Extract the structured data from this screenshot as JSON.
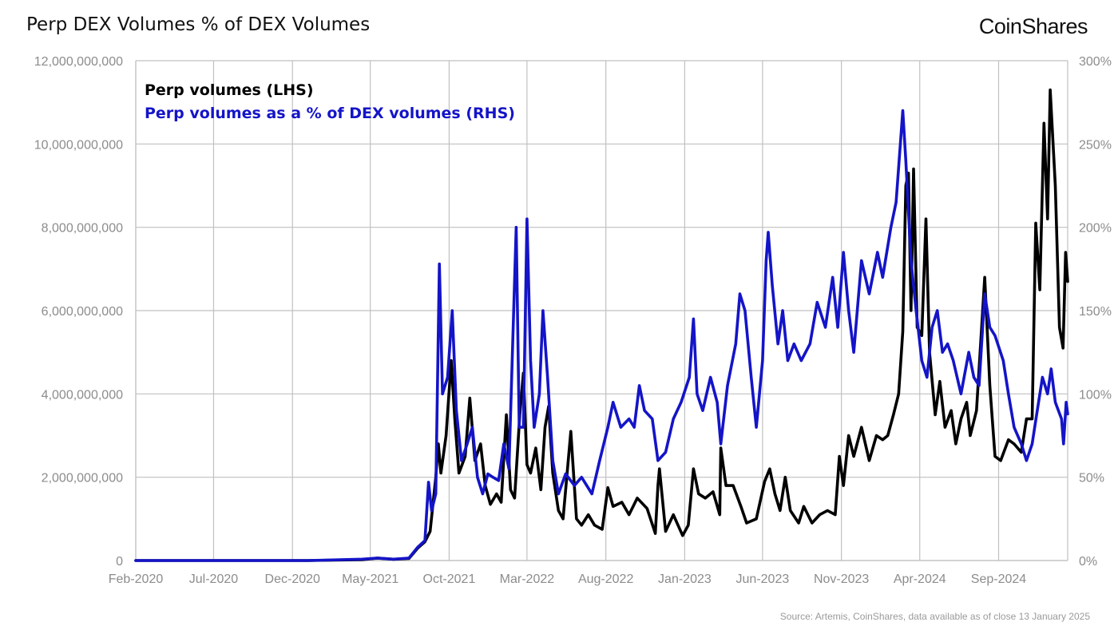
{
  "header": {
    "title": "Perp DEX Volumes % of DEX Volumes",
    "logo": "CoinShares"
  },
  "footer": {
    "source": "Source: Artemis, CoinShares, data available as of close 13 January 2025"
  },
  "colors": {
    "perp_volumes": "#000000",
    "perp_share": "#1414c8",
    "grid": "#c0c0c0",
    "tick_text": "#8c8c8c"
  },
  "chart_data": {
    "type": "line",
    "grid": true,
    "legend_placement": "top-left",
    "x_start": "2020-02-01",
    "x_end": "2025-01-13",
    "x_tick_labels": [
      "Feb-2020",
      "Jul-2020",
      "Dec-2020",
      "May-2021",
      "Oct-2021",
      "Mar-2022",
      "Aug-2022",
      "Jan-2023",
      "Jun-2023",
      "Nov-2023",
      "Apr-2024",
      "Sep-2024"
    ],
    "x_tick_dates": [
      "2020-02-01",
      "2020-07-01",
      "2020-12-01",
      "2021-05-01",
      "2021-10-01",
      "2022-03-01",
      "2022-08-01",
      "2023-01-01",
      "2023-06-01",
      "2023-11-01",
      "2024-04-01",
      "2024-09-01"
    ],
    "y_left": {
      "min": 0,
      "max": 12000000000,
      "ticks": [
        0,
        2000000000,
        4000000000,
        6000000000,
        8000000000,
        10000000000,
        12000000000
      ],
      "tick_labels": [
        "0",
        "2,000,000,000",
        "4,000,000,000",
        "6,000,000,000",
        "8,000,000,000",
        "10,000,000,000",
        "12,000,000,000"
      ]
    },
    "y_right": {
      "min": 0,
      "max": 300,
      "ticks": [
        0,
        50,
        100,
        150,
        200,
        250,
        300
      ],
      "tick_labels": [
        "0%",
        "50%",
        "100%",
        "150%",
        "200%",
        "250%",
        "300%"
      ]
    },
    "series": [
      {
        "name": "Perp volumes (LHS)",
        "axis": "left",
        "color": "#000000",
        "points": [
          [
            "2020-02-01",
            0
          ],
          [
            "2020-08-01",
            0
          ],
          [
            "2021-01-01",
            0
          ],
          [
            "2021-04-15",
            20000000
          ],
          [
            "2021-05-15",
            60000000
          ],
          [
            "2021-06-15",
            30000000
          ],
          [
            "2021-07-15",
            50000000
          ],
          [
            "2021-08-01",
            300000000
          ],
          [
            "2021-08-15",
            450000000
          ],
          [
            "2021-08-25",
            700000000
          ],
          [
            "2021-09-05",
            2000000000
          ],
          [
            "2021-09-10",
            2800000000
          ],
          [
            "2021-09-15",
            2100000000
          ],
          [
            "2021-09-25",
            3000000000
          ],
          [
            "2021-10-05",
            4800000000
          ],
          [
            "2021-10-12",
            3400000000
          ],
          [
            "2021-10-20",
            2100000000
          ],
          [
            "2021-11-01",
            2500000000
          ],
          [
            "2021-11-10",
            3900000000
          ],
          [
            "2021-11-20",
            2400000000
          ],
          [
            "2021-12-01",
            2800000000
          ],
          [
            "2021-12-10",
            1800000000
          ],
          [
            "2021-12-20",
            1350000000
          ],
          [
            "2022-01-01",
            1600000000
          ],
          [
            "2022-01-10",
            1400000000
          ],
          [
            "2022-01-20",
            3500000000
          ],
          [
            "2022-01-28",
            1700000000
          ],
          [
            "2022-02-05",
            1500000000
          ],
          [
            "2022-02-15",
            3500000000
          ],
          [
            "2022-02-22",
            4500000000
          ],
          [
            "2022-03-01",
            2300000000
          ],
          [
            "2022-03-08",
            2100000000
          ],
          [
            "2022-03-18",
            2700000000
          ],
          [
            "2022-03-28",
            1700000000
          ],
          [
            "2022-04-05",
            3200000000
          ],
          [
            "2022-04-12",
            3700000000
          ],
          [
            "2022-04-20",
            2100000000
          ],
          [
            "2022-05-01",
            1200000000
          ],
          [
            "2022-05-10",
            1000000000
          ],
          [
            "2022-05-25",
            3100000000
          ],
          [
            "2022-06-05",
            1000000000
          ],
          [
            "2022-06-15",
            850000000
          ],
          [
            "2022-06-28",
            1100000000
          ],
          [
            "2022-07-10",
            850000000
          ],
          [
            "2022-07-25",
            750000000
          ],
          [
            "2022-08-05",
            1750000000
          ],
          [
            "2022-08-15",
            1300000000
          ],
          [
            "2022-09-01",
            1400000000
          ],
          [
            "2022-09-15",
            1100000000
          ],
          [
            "2022-10-01",
            1500000000
          ],
          [
            "2022-10-20",
            1250000000
          ],
          [
            "2022-11-05",
            650000000
          ],
          [
            "2022-11-10",
            1800000000
          ],
          [
            "2022-11-13",
            2200000000
          ],
          [
            "2022-11-25",
            700000000
          ],
          [
            "2022-12-10",
            1100000000
          ],
          [
            "2022-12-28",
            600000000
          ],
          [
            "2023-01-08",
            850000000
          ],
          [
            "2023-01-18",
            2200000000
          ],
          [
            "2023-01-28",
            1600000000
          ],
          [
            "2023-02-10",
            1500000000
          ],
          [
            "2023-02-25",
            1650000000
          ],
          [
            "2023-03-10",
            1100000000
          ],
          [
            "2023-03-12",
            2700000000
          ],
          [
            "2023-03-22",
            1800000000
          ],
          [
            "2023-04-05",
            1800000000
          ],
          [
            "2023-04-20",
            1300000000
          ],
          [
            "2023-05-01",
            900000000
          ],
          [
            "2023-05-20",
            1000000000
          ],
          [
            "2023-06-05",
            1900000000
          ],
          [
            "2023-06-15",
            2200000000
          ],
          [
            "2023-06-25",
            1600000000
          ],
          [
            "2023-07-05",
            1200000000
          ],
          [
            "2023-07-15",
            2000000000
          ],
          [
            "2023-07-25",
            1200000000
          ],
          [
            "2023-08-10",
            900000000
          ],
          [
            "2023-08-20",
            1300000000
          ],
          [
            "2023-09-05",
            900000000
          ],
          [
            "2023-09-20",
            1100000000
          ],
          [
            "2023-10-05",
            1200000000
          ],
          [
            "2023-10-20",
            1100000000
          ],
          [
            "2023-10-28",
            2500000000
          ],
          [
            "2023-11-05",
            1800000000
          ],
          [
            "2023-11-15",
            3000000000
          ],
          [
            "2023-11-25",
            2500000000
          ],
          [
            "2023-12-10",
            3200000000
          ],
          [
            "2023-12-25",
            2400000000
          ],
          [
            "2024-01-08",
            3000000000
          ],
          [
            "2024-01-20",
            2900000000
          ],
          [
            "2024-01-30",
            3000000000
          ],
          [
            "2024-02-10",
            3500000000
          ],
          [
            "2024-02-20",
            4000000000
          ],
          [
            "2024-02-28",
            5500000000
          ],
          [
            "2024-03-05",
            9000000000
          ],
          [
            "2024-03-10",
            9300000000
          ],
          [
            "2024-03-15",
            6000000000
          ],
          [
            "2024-03-20",
            9400000000
          ],
          [
            "2024-03-27",
            5600000000
          ],
          [
            "2024-04-05",
            5400000000
          ],
          [
            "2024-04-13",
            8200000000
          ],
          [
            "2024-04-20",
            5000000000
          ],
          [
            "2024-05-01",
            3500000000
          ],
          [
            "2024-05-10",
            4300000000
          ],
          [
            "2024-05-20",
            3200000000
          ],
          [
            "2024-06-01",
            3600000000
          ],
          [
            "2024-06-10",
            2800000000
          ],
          [
            "2024-06-20",
            3400000000
          ],
          [
            "2024-07-01",
            3800000000
          ],
          [
            "2024-07-08",
            3000000000
          ],
          [
            "2024-07-20",
            3600000000
          ],
          [
            "2024-08-05",
            6800000000
          ],
          [
            "2024-08-15",
            4200000000
          ],
          [
            "2024-08-25",
            2500000000
          ],
          [
            "2024-09-05",
            2400000000
          ],
          [
            "2024-09-20",
            2900000000
          ],
          [
            "2024-10-01",
            2800000000
          ],
          [
            "2024-10-15",
            2600000000
          ],
          [
            "2024-10-25",
            3400000000
          ],
          [
            "2024-11-05",
            3400000000
          ],
          [
            "2024-11-12",
            8100000000
          ],
          [
            "2024-11-20",
            6500000000
          ],
          [
            "2024-11-28",
            10500000000
          ],
          [
            "2024-12-05",
            8200000000
          ],
          [
            "2024-12-10",
            11300000000
          ],
          [
            "2024-12-20",
            9000000000
          ],
          [
            "2024-12-28",
            5600000000
          ],
          [
            "2025-01-04",
            5100000000
          ],
          [
            "2025-01-09",
            7400000000
          ],
          [
            "2025-01-13",
            6700000000
          ]
        ]
      },
      {
        "name": "Perp volumes as a % of DEX volumes (RHS)",
        "axis": "right",
        "color": "#1414c8",
        "points": [
          [
            "2020-02-01",
            0
          ],
          [
            "2020-08-01",
            0
          ],
          [
            "2021-01-01",
            0
          ],
          [
            "2021-04-15",
            0.8
          ],
          [
            "2021-05-15",
            1.5
          ],
          [
            "2021-06-15",
            0.8
          ],
          [
            "2021-07-15",
            1.5
          ],
          [
            "2021-08-01",
            8
          ],
          [
            "2021-08-15",
            12
          ],
          [
            "2021-08-22",
            47
          ],
          [
            "2021-08-28",
            30
          ],
          [
            "2021-09-05",
            40
          ],
          [
            "2021-09-12",
            178
          ],
          [
            "2021-09-18",
            100
          ],
          [
            "2021-09-28",
            110
          ],
          [
            "2021-10-07",
            150
          ],
          [
            "2021-10-15",
            90
          ],
          [
            "2021-10-25",
            60
          ],
          [
            "2021-11-05",
            70
          ],
          [
            "2021-11-15",
            80
          ],
          [
            "2021-11-25",
            50
          ],
          [
            "2021-12-05",
            40
          ],
          [
            "2021-12-15",
            52
          ],
          [
            "2021-12-25",
            50
          ],
          [
            "2022-01-05",
            48
          ],
          [
            "2022-01-15",
            70
          ],
          [
            "2022-01-25",
            55
          ],
          [
            "2022-02-08",
            200
          ],
          [
            "2022-02-14",
            80
          ],
          [
            "2022-02-22",
            80
          ],
          [
            "2022-03-01",
            205
          ],
          [
            "2022-03-08",
            120
          ],
          [
            "2022-03-15",
            80
          ],
          [
            "2022-03-25",
            100
          ],
          [
            "2022-04-01",
            150
          ],
          [
            "2022-04-10",
            110
          ],
          [
            "2022-04-20",
            60
          ],
          [
            "2022-05-01",
            40
          ],
          [
            "2022-05-15",
            52
          ],
          [
            "2022-06-01",
            45
          ],
          [
            "2022-06-15",
            50
          ],
          [
            "2022-07-05",
            40
          ],
          [
            "2022-07-20",
            60
          ],
          [
            "2022-08-05",
            80
          ],
          [
            "2022-08-15",
            95
          ],
          [
            "2022-08-30",
            80
          ],
          [
            "2022-09-15",
            85
          ],
          [
            "2022-09-25",
            80
          ],
          [
            "2022-10-05",
            105
          ],
          [
            "2022-10-15",
            90
          ],
          [
            "2022-10-30",
            85
          ],
          [
            "2022-11-10",
            60
          ],
          [
            "2022-11-25",
            65
          ],
          [
            "2022-12-10",
            85
          ],
          [
            "2022-12-25",
            95
          ],
          [
            "2023-01-10",
            110
          ],
          [
            "2023-01-18",
            145
          ],
          [
            "2023-01-25",
            100
          ],
          [
            "2023-02-05",
            90
          ],
          [
            "2023-02-20",
            110
          ],
          [
            "2023-03-05",
            95
          ],
          [
            "2023-03-12",
            70
          ],
          [
            "2023-03-25",
            105
          ],
          [
            "2023-04-10",
            130
          ],
          [
            "2023-04-18",
            160
          ],
          [
            "2023-04-28",
            150
          ],
          [
            "2023-05-10",
            110
          ],
          [
            "2023-05-20",
            80
          ],
          [
            "2023-06-01",
            120
          ],
          [
            "2023-06-08",
            180
          ],
          [
            "2023-06-12",
            197
          ],
          [
            "2023-06-20",
            165
          ],
          [
            "2023-07-01",
            130
          ],
          [
            "2023-07-10",
            150
          ],
          [
            "2023-07-20",
            120
          ],
          [
            "2023-08-01",
            130
          ],
          [
            "2023-08-15",
            120
          ],
          [
            "2023-09-01",
            130
          ],
          [
            "2023-09-15",
            155
          ],
          [
            "2023-10-01",
            140
          ],
          [
            "2023-10-15",
            170
          ],
          [
            "2023-10-25",
            140
          ],
          [
            "2023-11-05",
            185
          ],
          [
            "2023-11-15",
            150
          ],
          [
            "2023-11-25",
            125
          ],
          [
            "2023-12-10",
            180
          ],
          [
            "2023-12-25",
            160
          ],
          [
            "2024-01-10",
            185
          ],
          [
            "2024-01-20",
            170
          ],
          [
            "2024-02-05",
            200
          ],
          [
            "2024-02-15",
            215
          ],
          [
            "2024-02-28",
            270
          ],
          [
            "2024-03-05",
            240
          ],
          [
            "2024-03-15",
            180
          ],
          [
            "2024-03-25",
            150
          ],
          [
            "2024-04-05",
            120
          ],
          [
            "2024-04-15",
            110
          ],
          [
            "2024-04-25",
            140
          ],
          [
            "2024-05-05",
            150
          ],
          [
            "2024-05-15",
            125
          ],
          [
            "2024-05-25",
            130
          ],
          [
            "2024-06-05",
            120
          ],
          [
            "2024-06-20",
            100
          ],
          [
            "2024-07-05",
            125
          ],
          [
            "2024-07-15",
            110
          ],
          [
            "2024-07-25",
            105
          ],
          [
            "2024-08-05",
            160
          ],
          [
            "2024-08-15",
            140
          ],
          [
            "2024-08-25",
            135
          ],
          [
            "2024-09-10",
            120
          ],
          [
            "2024-09-20",
            100
          ],
          [
            "2024-10-01",
            80
          ],
          [
            "2024-10-15",
            70
          ],
          [
            "2024-10-25",
            60
          ],
          [
            "2024-11-05",
            70
          ],
          [
            "2024-11-15",
            90
          ],
          [
            "2024-11-25",
            110
          ],
          [
            "2024-12-05",
            100
          ],
          [
            "2024-12-12",
            115
          ],
          [
            "2024-12-20",
            95
          ],
          [
            "2025-01-01",
            85
          ],
          [
            "2025-01-05",
            70
          ],
          [
            "2025-01-10",
            95
          ],
          [
            "2025-01-13",
            88
          ]
        ]
      }
    ]
  }
}
